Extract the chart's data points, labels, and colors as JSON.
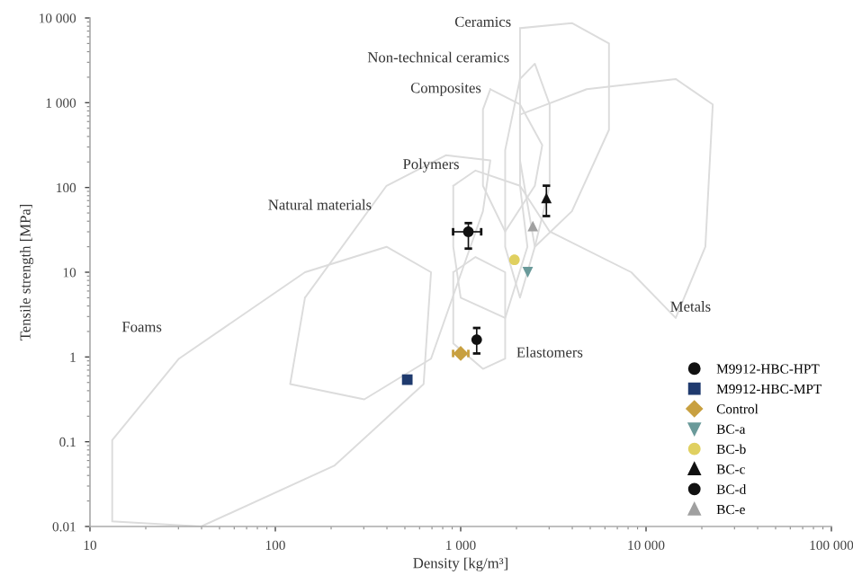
{
  "chart_data": {
    "type": "scatter",
    "xlabel": "Density [kg/m³]",
    "ylabel": "Tensile strength [MPa]",
    "log": "xy",
    "xlim": [
      10,
      100000
    ],
    "xticks": [
      10,
      100,
      {
        "value": 1000,
        "label": "1 000"
      },
      {
        "value": 10000,
        "label": "10 000"
      },
      {
        "value": 100000,
        "label": "100 000"
      }
    ],
    "ylim": [
      0.01,
      10000
    ],
    "yticks": [
      0.01,
      0.1,
      1,
      10,
      100,
      {
        "value": 1000,
        "label": "1 000"
      },
      {
        "value": 10000,
        "label": "10 000"
      }
    ],
    "legend": "bottom right",
    "grid": false,
    "series": [
      {
        "name": "M9912-HBC-HPT",
        "color": "#111111",
        "marker": "circle",
        "x": [
          1220
        ],
        "values": [
          1.6
        ],
        "errors": [
          [
            1.1,
            2.2
          ]
        ]
      },
      {
        "name": "M9912-HBC-MPT",
        "color": "#1f3a6e",
        "marker": "square",
        "x": [
          515
        ],
        "values": [
          0.54
        ]
      },
      {
        "name": "Control",
        "color": "#c8a040",
        "marker": "diamond",
        "x": [
          1000
        ],
        "values": [
          1.1
        ],
        "xerrors": [
          [
            910,
            1100
          ]
        ]
      },
      {
        "name": "BC-a",
        "color": "#6a9a9a",
        "marker": "triangle_down",
        "x": [
          2300
        ],
        "values": [
          10
        ]
      },
      {
        "name": "BC-b",
        "color": "#e0d060",
        "marker": "circle",
        "x": [
          1950
        ],
        "values": [
          14
        ]
      },
      {
        "name": "BC-c",
        "color": "#111111",
        "marker": "triangle",
        "x": [
          2900
        ],
        "values": [
          75
        ],
        "errors": [
          [
            46,
            105
          ]
        ]
      },
      {
        "name": "BC-d",
        "color": "#111111",
        "marker": "circle",
        "x": [
          1100
        ],
        "values": [
          30
        ],
        "errors": [
          [
            19,
            38
          ]
        ],
        "xerrors": [
          [
            910,
            1290
          ]
        ]
      },
      {
        "name": "BC-e",
        "color": "#a0a0a0",
        "marker": "triangle",
        "x": [
          2450
        ],
        "values": [
          35
        ]
      }
    ],
    "annotations": [
      "Ceramics",
      "Non-technical ceramics",
      "Composites",
      "Polymers",
      "Natural materials",
      "Foams",
      "Elastomers",
      "Metals"
    ]
  }
}
